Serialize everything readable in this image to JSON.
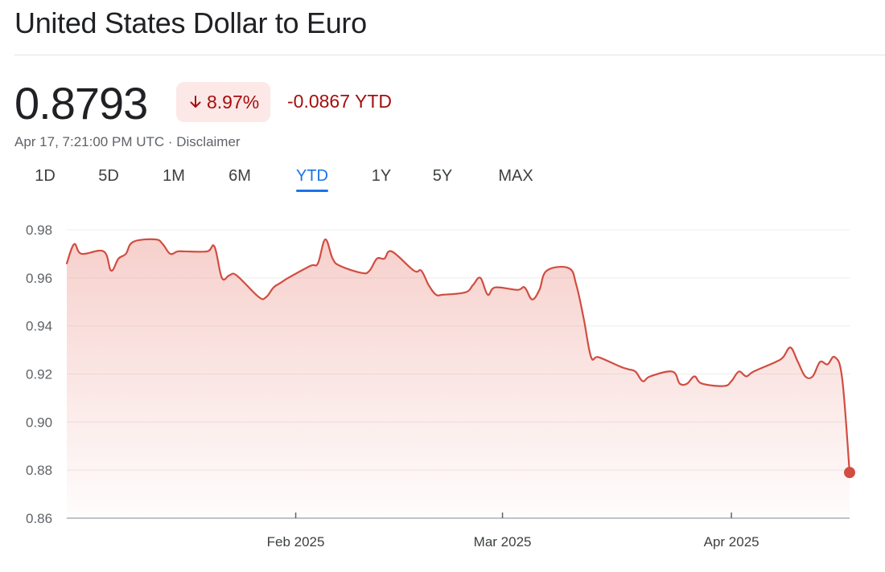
{
  "header": {
    "title": "United States Dollar to Euro"
  },
  "quote": {
    "price": "0.8793",
    "percent_change": "8.97%",
    "direction_icon": "arrow-down-icon",
    "abs_change": "-0.0867 YTD",
    "timestamp": "Apr 17, 7:21:00 PM UTC · ",
    "disclaimer": "Disclaimer",
    "negative_color": "#a50e0e",
    "negative_bg": "#fce8e6"
  },
  "tabs": [
    {
      "label": "1D",
      "active": false
    },
    {
      "label": "5D",
      "active": false
    },
    {
      "label": "1M",
      "active": false
    },
    {
      "label": "6M",
      "active": false
    },
    {
      "label": "YTD",
      "active": true
    },
    {
      "label": "1Y",
      "active": false
    },
    {
      "label": "5Y",
      "active": false
    },
    {
      "label": "MAX",
      "active": false
    }
  ],
  "chart_data": {
    "type": "area",
    "line_color": "#d14d41",
    "fill_color": "#e8847a",
    "grid": true,
    "ylim": [
      0.86,
      0.98
    ],
    "yticks": [
      {
        "value": 0.98,
        "label": "0.98"
      },
      {
        "value": 0.96,
        "label": "0.96"
      },
      {
        "value": 0.94,
        "label": "0.94"
      },
      {
        "value": 0.92,
        "label": "0.92"
      },
      {
        "value": 0.9,
        "label": "0.90"
      },
      {
        "value": 0.88,
        "label": "0.88"
      },
      {
        "value": 0.86,
        "label": "0.86"
      }
    ],
    "xticks": [
      {
        "date": "2025-02-01",
        "label": "Feb 2025"
      },
      {
        "date": "2025-03-01",
        "label": "Mar 2025"
      },
      {
        "date": "2025-04-01",
        "label": "Apr 2025"
      }
    ],
    "xrange": [
      "2025-01-01",
      "2025-04-17"
    ],
    "series": [
      {
        "points": [
          [
            "2025-01-01",
            0.966
          ],
          [
            "2025-01-02",
            0.974
          ],
          [
            "2025-01-03",
            0.97
          ],
          [
            "2025-01-06",
            0.971
          ],
          [
            "2025-01-07",
            0.963
          ],
          [
            "2025-01-08",
            0.968
          ],
          [
            "2025-01-09",
            0.97
          ],
          [
            "2025-01-10",
            0.975
          ],
          [
            "2025-01-13",
            0.976
          ],
          [
            "2025-01-14",
            0.974
          ],
          [
            "2025-01-15",
            0.97
          ],
          [
            "2025-01-16",
            0.971
          ],
          [
            "2025-01-17",
            0.971
          ],
          [
            "2025-01-20",
            0.971
          ],
          [
            "2025-01-21",
            0.973
          ],
          [
            "2025-01-22",
            0.96
          ],
          [
            "2025-01-23",
            0.961
          ],
          [
            "2025-01-24",
            0.961
          ],
          [
            "2025-01-27",
            0.952
          ],
          [
            "2025-01-28",
            0.952
          ],
          [
            "2025-01-29",
            0.956
          ],
          [
            "2025-01-30",
            0.958
          ],
          [
            "2025-01-31",
            0.96
          ],
          [
            "2025-02-03",
            0.965
          ],
          [
            "2025-02-04",
            0.966
          ],
          [
            "2025-02-05",
            0.976
          ],
          [
            "2025-02-06",
            0.968
          ],
          [
            "2025-02-07",
            0.965
          ],
          [
            "2025-02-10",
            0.962
          ],
          [
            "2025-02-11",
            0.963
          ],
          [
            "2025-02-12",
            0.968
          ],
          [
            "2025-02-13",
            0.968
          ],
          [
            "2025-02-14",
            0.971
          ],
          [
            "2025-02-17",
            0.963
          ],
          [
            "2025-02-18",
            0.963
          ],
          [
            "2025-02-19",
            0.957
          ],
          [
            "2025-02-20",
            0.953
          ],
          [
            "2025-02-21",
            0.953
          ],
          [
            "2025-02-24",
            0.954
          ],
          [
            "2025-02-25",
            0.957
          ],
          [
            "2025-02-26",
            0.96
          ],
          [
            "2025-02-27",
            0.953
          ],
          [
            "2025-02-28",
            0.956
          ],
          [
            "2025-03-03",
            0.955
          ],
          [
            "2025-03-04",
            0.956
          ],
          [
            "2025-03-05",
            0.951
          ],
          [
            "2025-03-06",
            0.955
          ],
          [
            "2025-03-07",
            0.963
          ],
          [
            "2025-03-10",
            0.964
          ],
          [
            "2025-03-11",
            0.957
          ],
          [
            "2025-03-12",
            0.943
          ],
          [
            "2025-03-13",
            0.927
          ],
          [
            "2025-03-14",
            0.927
          ],
          [
            "2025-03-17",
            0.923
          ],
          [
            "2025-03-18",
            0.922
          ],
          [
            "2025-03-19",
            0.921
          ],
          [
            "2025-03-20",
            0.917
          ],
          [
            "2025-03-21",
            0.919
          ],
          [
            "2025-03-24",
            0.921
          ],
          [
            "2025-03-25",
            0.916
          ],
          [
            "2025-03-26",
            0.916
          ],
          [
            "2025-03-27",
            0.919
          ],
          [
            "2025-03-28",
            0.916
          ],
          [
            "2025-03-31",
            0.915
          ],
          [
            "2025-04-01",
            0.917
          ],
          [
            "2025-04-02",
            0.921
          ],
          [
            "2025-04-03",
            0.919
          ],
          [
            "2025-04-04",
            0.921
          ],
          [
            "2025-04-07",
            0.925
          ],
          [
            "2025-04-08",
            0.927
          ],
          [
            "2025-04-09",
            0.931
          ],
          [
            "2025-04-10",
            0.925
          ],
          [
            "2025-04-11",
            0.919
          ],
          [
            "2025-04-12",
            0.919
          ],
          [
            "2025-04-13",
            0.925
          ],
          [
            "2025-04-14",
            0.924
          ],
          [
            "2025-04-15",
            0.927
          ],
          [
            "2025-04-16",
            0.918
          ],
          [
            "2025-04-17",
            0.879
          ]
        ]
      }
    ]
  }
}
